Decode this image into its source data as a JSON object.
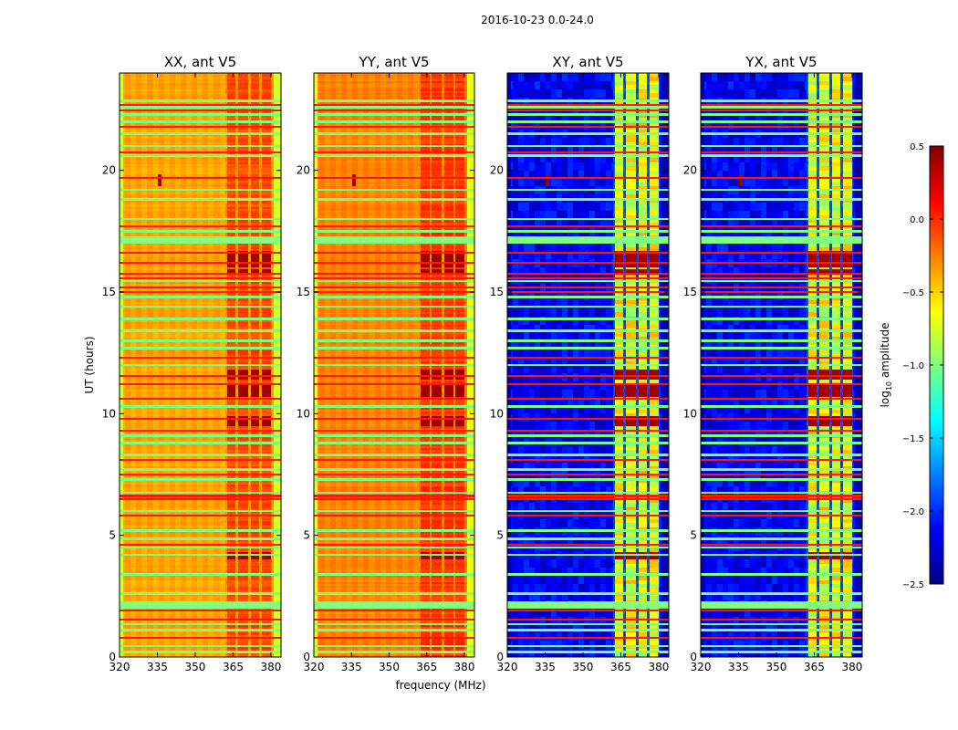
{
  "chart_data": {
    "type": "heatmap",
    "title": "2016-10-23 0.0-24.0",
    "xlabel": "frequency (MHz)",
    "ylabel": "UT (hours)",
    "xlim": [
      320,
      384
    ],
    "ylim": [
      0,
      24
    ],
    "xticks": [
      "320",
      "335",
      "350",
      "365",
      "380"
    ],
    "yticks": [
      "0",
      "5",
      "10",
      "15",
      "20"
    ],
    "colormap": "jet",
    "colorbar": {
      "label_main": "log",
      "label_sub": "10",
      "label_rest": " amplitude",
      "range": [
        -2.5,
        0.5
      ],
      "ticks": [
        "0.5",
        "0.0",
        "−0.5",
        "−1.0",
        "−1.5",
        "−2.0",
        "−2.5"
      ]
    },
    "panels": [
      {
        "title": "XX, ant V5",
        "base": -0.45,
        "band": -0.2,
        "band_gap": -0.4,
        "edge": -0.75
      },
      {
        "title": "YY, ant V5",
        "base": -0.35,
        "band": -0.15,
        "band_gap": -0.35,
        "edge": -0.7
      },
      {
        "title": "XY, ant V5",
        "base": -2.35,
        "band": -0.9,
        "band_gap": -2.0,
        "edge": -2.35
      },
      {
        "title": "YX, ant V5",
        "base": -2.35,
        "band": -0.9,
        "band_gap": -2.0,
        "edge": -2.35
      }
    ],
    "rfi_band_columns_mhz": [
      [
        362.5,
        366
      ],
      [
        367,
        371
      ],
      [
        372,
        375.5
      ],
      [
        376.5,
        380
      ]
    ],
    "strong_rfi_intervals_ut": [
      [
        16.0,
        16.7
      ],
      [
        15.8,
        15.95
      ],
      [
        11.4,
        11.8
      ],
      [
        10.7,
        11.2
      ],
      [
        9.5,
        9.9
      ],
      [
        4.0,
        4.3
      ]
    ],
    "strong_rfi_level": 0.4,
    "flagged_rows_ut": [
      0.2,
      0.45,
      1.1,
      1.35,
      [
        2.0,
        2.3
      ],
      2.6,
      3.4,
      4.2,
      4.5,
      4.85,
      5.2,
      6.0,
      6.75,
      7.3,
      7.7,
      8.3,
      8.8,
      9.1,
      10.3,
      12.0,
      12.7,
      13.0,
      13.4,
      13.9,
      14.4,
      14.8,
      15.45,
      [
        17.0,
        17.3
      ],
      17.5,
      18.0,
      18.8,
      19.2,
      20.6,
      21.0,
      21.5,
      22.0,
      22.3,
      22.6,
      22.85
    ],
    "flagged_level": -1.0,
    "red_lines_ut": [
      0.8,
      1.55,
      1.9,
      4.6,
      5.8,
      6.5,
      6.62,
      7.5,
      8.1,
      9.3,
      9.8,
      10.6,
      11.2,
      11.55,
      12.3,
      15.0,
      15.2,
      15.55,
      15.75,
      16.2,
      16.6,
      17.7,
      19.7,
      20.75,
      21.8,
      22.45,
      22.7
    ],
    "red_line_level": 0.05,
    "point_sources": [
      {
        "freq": 336,
        "ut": 19.6,
        "level": 0.4
      }
    ]
  }
}
